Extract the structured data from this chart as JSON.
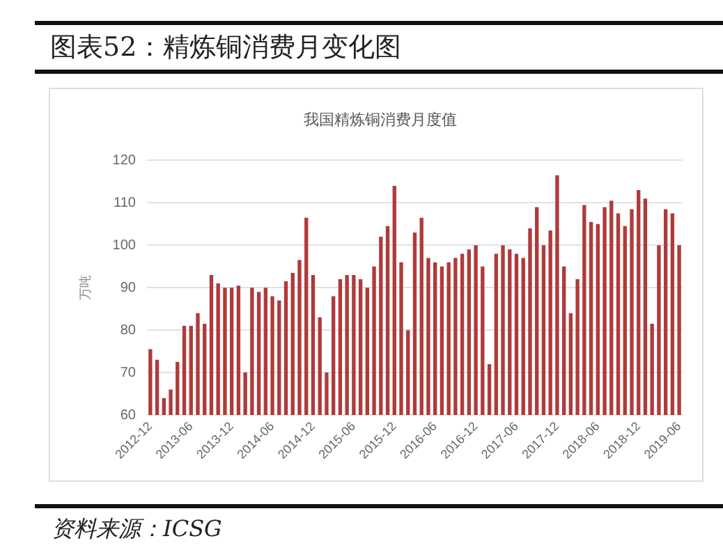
{
  "chart_data": {
    "type": "bar",
    "title": "图表52：精炼铜消费月变化图",
    "subtitle": "我国精炼铜消费月度值",
    "ylabel": "万吨",
    "annotations": [
      "资料来源：ICSG"
    ],
    "categories": [
      "2012-12",
      null,
      null,
      null,
      null,
      null,
      "2013-06",
      null,
      null,
      null,
      null,
      null,
      "2013-12",
      null,
      null,
      null,
      null,
      null,
      "2014-06",
      null,
      null,
      null,
      null,
      null,
      "2014-12",
      null,
      null,
      null,
      null,
      null,
      "2015-06",
      null,
      null,
      null,
      null,
      null,
      "2015-12",
      null,
      null,
      null,
      null,
      null,
      "2016-06",
      null,
      null,
      null,
      null,
      null,
      "2016-12",
      null,
      null,
      null,
      null,
      null,
      "2017-06",
      null,
      null,
      null,
      null,
      null,
      "2017-12",
      null,
      null,
      null,
      null,
      null,
      "2018-06",
      null,
      null,
      null,
      null,
      null,
      "2018-12",
      null,
      null,
      null,
      null,
      null,
      "2019-06"
    ],
    "values": [
      75.5,
      73,
      64,
      66,
      72.5,
      81,
      81,
      84,
      81.5,
      93,
      91,
      90,
      90,
      90.5,
      70,
      90,
      89,
      90,
      88,
      87,
      91.5,
      93.5,
      96.5,
      106.5,
      93,
      83,
      70,
      88,
      92,
      93,
      93,
      92,
      90,
      95,
      102,
      104.5,
      114,
      96,
      80,
      103,
      106.5,
      97,
      96,
      95,
      96,
      97,
      98,
      99,
      100,
      95,
      72,
      98,
      100,
      99,
      98,
      97,
      104,
      109,
      100,
      103.5,
      116.5,
      95,
      84,
      92,
      109.5,
      105.5,
      105,
      109,
      110.5,
      107.5,
      104.5,
      108.5,
      113,
      111,
      81.5,
      100,
      108.5,
      107.5,
      100
    ],
    "color": "#b03a3a",
    "ylim": [
      60,
      120
    ],
    "yticks": [
      60,
      70,
      80,
      90,
      100,
      110,
      120
    ],
    "grid": "y"
  }
}
